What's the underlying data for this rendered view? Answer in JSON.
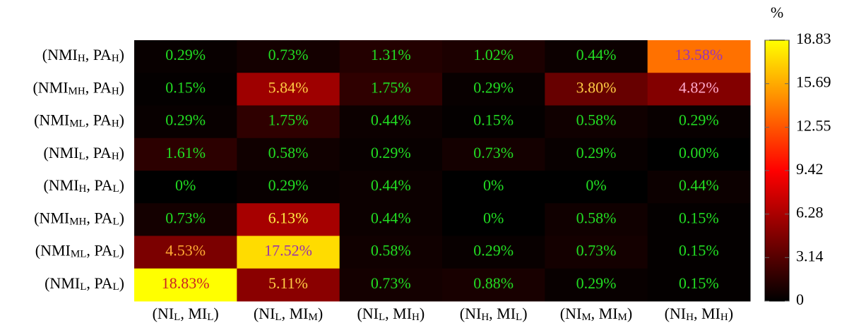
{
  "chart_data": {
    "type": "heatmap",
    "colorbar_label": "%",
    "x_categories": [
      [
        "(NI",
        "L",
        ", MI",
        "L",
        ")"
      ],
      [
        "(NI",
        "L",
        ", MI",
        "M",
        ")"
      ],
      [
        "(NI",
        "L",
        ", MI",
        "H",
        ")"
      ],
      [
        "(NI",
        "H",
        ", MI",
        "L",
        ")"
      ],
      [
        "(NI",
        "M",
        ", MI",
        "M",
        ")"
      ],
      [
        "(NI",
        "H",
        ", MI",
        "H",
        ")"
      ]
    ],
    "y_categories": [
      [
        "(NMI",
        "H",
        ", PA",
        "H",
        ")"
      ],
      [
        "(NMI",
        "MH",
        ", PA",
        "H",
        ")"
      ],
      [
        "(NMI",
        "ML",
        ", PA",
        "H",
        ")"
      ],
      [
        "(NMI",
        "L",
        ", PA",
        "H",
        ")"
      ],
      [
        "(NMI",
        "H",
        ", PA",
        "L",
        ")"
      ],
      [
        "(NMI",
        "MH",
        ", PA",
        "L",
        ")"
      ],
      [
        "(NMI",
        "ML",
        ", PA",
        "L",
        ")"
      ],
      [
        "(NMI",
        "L",
        ", PA",
        "L",
        ")"
      ]
    ],
    "values": [
      [
        0.29,
        0.73,
        1.31,
        1.02,
        0.44,
        13.58
      ],
      [
        0.15,
        5.84,
        1.75,
        0.29,
        3.8,
        4.82
      ],
      [
        0.29,
        1.75,
        0.44,
        0.15,
        0.58,
        0.29
      ],
      [
        1.61,
        0.58,
        0.29,
        0.73,
        0.29,
        0.0
      ],
      [
        0,
        0.29,
        0.44,
        0,
        0,
        0.44
      ],
      [
        0.73,
        6.13,
        0.44,
        0,
        0.58,
        0.15
      ],
      [
        4.53,
        17.52,
        0.58,
        0.29,
        0.73,
        0.15
      ],
      [
        18.83,
        5.11,
        0.73,
        0.88,
        0.29,
        0.15
      ]
    ],
    "value_labels": [
      [
        "0.29%",
        "0.73%",
        "1.31%",
        "1.02%",
        "0.44%",
        "13.58%"
      ],
      [
        "0.15%",
        "5.84%",
        "1.75%",
        "0.29%",
        "3.80%",
        "4.82%"
      ],
      [
        "0.29%",
        "1.75%",
        "0.44%",
        "0.15%",
        "0.58%",
        "0.29%"
      ],
      [
        "1.61%",
        "0.58%",
        "0.29%",
        "0.73%",
        "0.29%",
        "0.00%"
      ],
      [
        "0%",
        "0.29%",
        "0.44%",
        "0%",
        "0%",
        "0.44%"
      ],
      [
        "0.73%",
        "6.13%",
        "0.44%",
        "0%",
        "0.58%",
        "0.15%"
      ],
      [
        "4.53%",
        "17.52%",
        "0.58%",
        "0.29%",
        "0.73%",
        "0.15%"
      ],
      [
        "18.83%",
        "5.11%",
        "0.73%",
        "0.88%",
        "0.29%",
        "0.15%"
      ]
    ],
    "value_label_colors": [
      [
        "#22dd22",
        "#22dd22",
        "#22dd22",
        "#22dd22",
        "#22dd22",
        "#9933bb"
      ],
      [
        "#22dd22",
        "#ffcc44",
        "#22dd22",
        "#22dd22",
        "#ffcc44",
        "#ffaacc"
      ],
      [
        "#22dd22",
        "#22dd22",
        "#22dd22",
        "#22dd22",
        "#22dd22",
        "#22dd22"
      ],
      [
        "#22dd22",
        "#22dd22",
        "#22dd22",
        "#22dd22",
        "#22dd22",
        "#22dd22"
      ],
      [
        "#22dd22",
        "#22dd22",
        "#22dd22",
        "#22dd22",
        "#22dd22",
        "#22dd22"
      ],
      [
        "#22dd22",
        "#ffee44",
        "#22dd22",
        "#22dd22",
        "#22dd22",
        "#22dd22"
      ],
      [
        "#ffaa33",
        "#9933aa",
        "#22dd22",
        "#22dd22",
        "#22dd22",
        "#22dd22"
      ],
      [
        "#cc2222",
        "#ffcc44",
        "#22dd22",
        "#22dd22",
        "#22dd22",
        "#22dd22"
      ]
    ],
    "colormap": [
      "#000000",
      "#ff0000",
      "#ffff00"
    ],
    "clim": [
      0,
      18.83
    ],
    "cticks": [
      0,
      3.14,
      6.28,
      9.42,
      12.55,
      15.69,
      18.83
    ]
  }
}
